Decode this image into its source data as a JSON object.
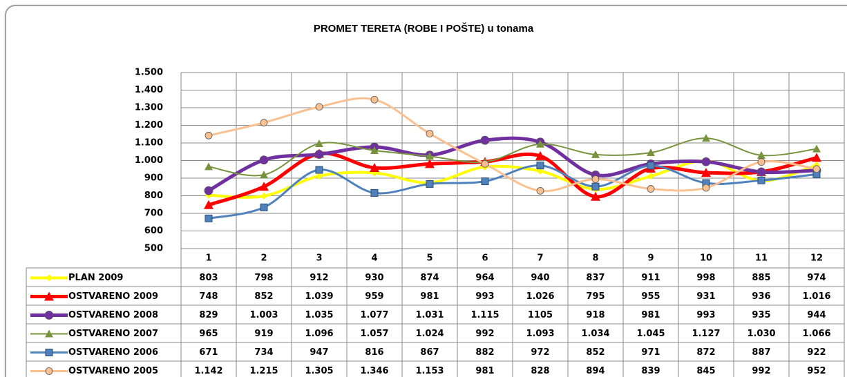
{
  "chart_data": {
    "type": "line",
    "title": "PROMET TERETA  (ROBE I POŠTE) u tonama",
    "categories": [
      "1",
      "2",
      "3",
      "4",
      "5",
      "6",
      "7",
      "8",
      "9",
      "10",
      "11",
      "12"
    ],
    "ylim": [
      500,
      1500
    ],
    "yticks": [
      {
        "value": 500,
        "label": "500"
      },
      {
        "value": 600,
        "label": "600"
      },
      {
        "value": 700,
        "label": "700"
      },
      {
        "value": 800,
        "label": "800"
      },
      {
        "value": 900,
        "label": "900"
      },
      {
        "value": 1000,
        "label": "1.000"
      },
      {
        "value": 1100,
        "label": "1.100"
      },
      {
        "value": 1200,
        "label": "1.200"
      },
      {
        "value": 1300,
        "label": "1.300"
      },
      {
        "value": 1400,
        "label": "1.400"
      },
      {
        "value": 1500,
        "label": "1.500"
      }
    ],
    "grid": true,
    "series": [
      {
        "name": "PLAN 2009",
        "color": "#ffff00",
        "marker": "diamond",
        "width": 4,
        "values": [
          803,
          798,
          912,
          930,
          874,
          964,
          940,
          837,
          911,
          998,
          885,
          974
        ]
      },
      {
        "name": "OSTVARENO 2009",
        "color": "#ff0000",
        "marker": "triangle",
        "width": 5,
        "values": [
          748,
          852,
          1039,
          959,
          981,
          993,
          1026,
          795,
          955,
          931,
          936,
          1016
        ],
        "value_labels": [
          "748",
          "852",
          "1.039",
          "959",
          "981",
          "993",
          "1.026",
          "795",
          "955",
          "931",
          "936",
          "1.016"
        ]
      },
      {
        "name": "OSTVARENO 2008",
        "color": "#7030a0",
        "marker": "circle",
        "width": 5,
        "values": [
          829,
          1003,
          1035,
          1077,
          1031,
          1115,
          1105,
          918,
          981,
          993,
          935,
          944
        ],
        "value_labels": [
          "829",
          "1.003",
          "1.035",
          "1.077",
          "1.031",
          "1.115",
          "1105",
          "918",
          "981",
          "993",
          "935",
          "944"
        ]
      },
      {
        "name": "OSTVARENO 2007",
        "color": "#77933c",
        "marker": "triangle",
        "width": 2,
        "values": [
          965,
          919,
          1096,
          1057,
          1024,
          992,
          1093,
          1034,
          1045,
          1127,
          1030,
          1066
        ],
        "value_labels": [
          "965",
          "919",
          "1.096",
          "1.057",
          "1.024",
          "992",
          "1.093",
          "1.034",
          "1.045",
          "1.127",
          "1.030",
          "1.066"
        ]
      },
      {
        "name": "OSTVARENO 2006",
        "color": "#4f81bd",
        "marker": "square",
        "width": 3,
        "values": [
          671,
          734,
          947,
          816,
          867,
          882,
          972,
          852,
          971,
          872,
          887,
          922
        ]
      },
      {
        "name": "OSTVARENO 2005",
        "color": "#fac090",
        "marker": "circle",
        "width": 3,
        "values": [
          1142,
          1215,
          1305,
          1346,
          1153,
          981,
          828,
          894,
          839,
          845,
          992,
          952
        ],
        "value_labels": [
          "1.142",
          "1.215",
          "1.305",
          "1.346",
          "1.153",
          "981",
          "828",
          "894",
          "839",
          "845",
          "992",
          "952"
        ]
      }
    ]
  }
}
